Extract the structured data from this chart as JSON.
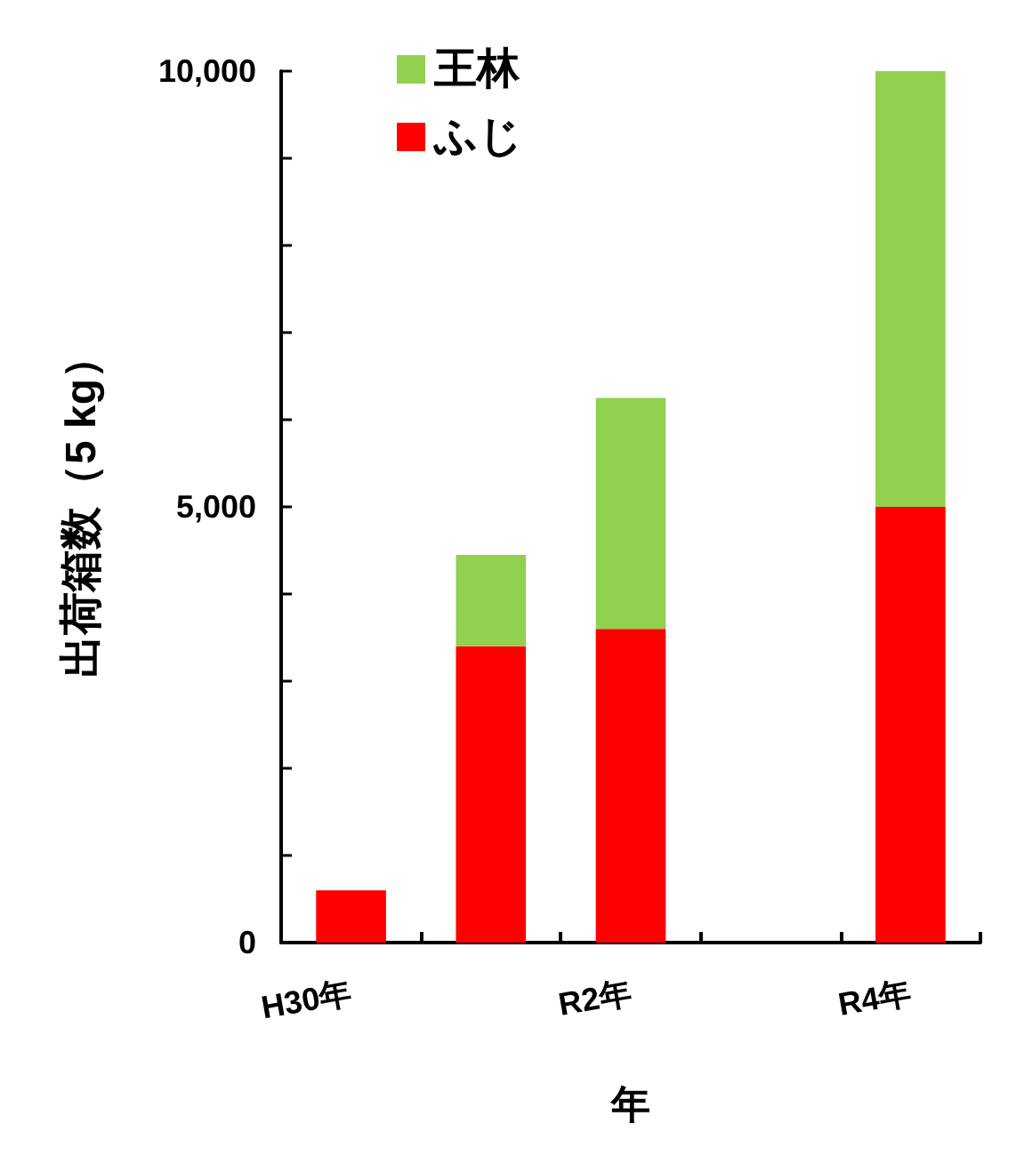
{
  "chart_data": {
    "type": "bar",
    "stacked": true,
    "xlabel": "年",
    "ylabel": "出荷箱数（5 kg）",
    "categories": [
      "H30年",
      null,
      "R2年",
      null,
      "R4年"
    ],
    "series": [
      {
        "name": "ふじ",
        "color": "#ff0000",
        "values": [
          600,
          3400,
          3600,
          null,
          5000
        ]
      },
      {
        "name": "王林",
        "color": "#92d050",
        "values": [
          null,
          1050,
          2650,
          null,
          5000
        ]
      }
    ],
    "ylim": [
      0,
      10000
    ],
    "yticks": [
      0,
      {
        "value": 1000,
        "label": null
      },
      {
        "value": 2000,
        "label": null
      },
      {
        "value": 3000,
        "label": null
      },
      {
        "value": 4000,
        "label": null
      },
      "5,000",
      {
        "value": 6000,
        "label": null
      },
      {
        "value": 7000,
        "label": null
      },
      {
        "value": 8000,
        "label": null
      },
      {
        "value": 9000,
        "label": null
      },
      {
        "value": 10000,
        "label": "10,000"
      }
    ],
    "legend": "top left",
    "grid": false
  }
}
